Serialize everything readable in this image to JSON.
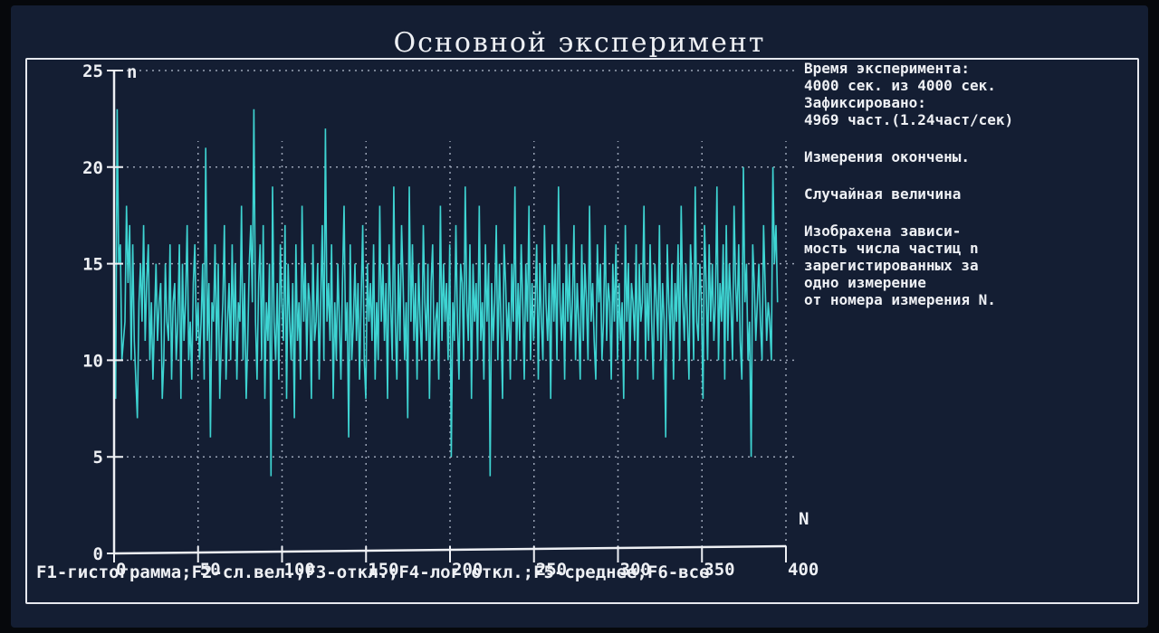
{
  "window": {
    "title": "Основной эксперимент"
  },
  "info": {
    "time_label": "Время эксперимента:",
    "time_value": "4000 сек. из 4000 сек.",
    "registered_label": "Зафиксировано:",
    "registered_value": "4969 част.(1.24част/сек)",
    "status": "Измерения окончены.",
    "mode": "Случайная величина",
    "description_lines": [
      "Изобрахена зависи-",
      "мость числа частиц n",
      "зарегистированных за",
      "одно измерение",
      "от номера измерения N."
    ]
  },
  "footer": {
    "hotkeys": "F1-гистограмма;F2-сл.вел.;F3-откл.;F4-лог.откл.;F5-среднее;F6-все"
  },
  "colors": {
    "series": "#3ed4d2",
    "background": "#141e33",
    "text": "#eef0f4",
    "grid": "#9aa3b5"
  },
  "chart_data": {
    "type": "line",
    "xlabel": "N",
    "ylabel": "n",
    "xlim": [
      0,
      400
    ],
    "ylim": [
      0,
      25
    ],
    "x_ticks": [
      0,
      50,
      100,
      150,
      200,
      250,
      300,
      350,
      400
    ],
    "y_ticks": [
      0,
      5,
      10,
      15,
      20,
      25
    ],
    "grid": true,
    "series": [
      {
        "values": [
          13,
          8,
          23,
          15,
          16,
          10,
          11,
          12,
          18,
          14,
          17,
          10,
          16,
          11,
          9,
          7,
          13,
          15,
          12,
          17,
          11,
          14,
          16,
          10,
          13,
          9,
          12,
          15,
          11,
          13,
          14,
          8,
          10,
          15,
          12,
          11,
          16,
          9,
          13,
          14,
          10,
          12,
          16,
          8,
          15,
          11,
          13,
          17,
          10,
          12,
          9,
          14,
          16,
          11,
          13,
          10,
          12,
          15,
          9,
          21,
          11,
          14,
          6,
          13,
          12,
          16,
          10,
          15,
          8,
          11,
          13,
          17,
          9,
          12,
          14,
          10,
          16,
          11,
          15,
          9,
          13,
          12,
          18,
          10,
          14,
          8,
          11,
          15,
          17,
          13,
          23,
          12,
          9,
          14,
          16,
          10,
          17,
          8,
          13,
          11,
          15,
          4,
          19,
          12,
          10,
          14,
          9,
          16,
          13,
          11,
          17,
          8,
          15,
          12,
          10,
          14,
          7,
          16,
          11,
          13,
          9,
          18,
          12,
          15,
          10,
          14,
          13,
          8,
          16,
          11,
          12,
          15,
          9,
          13,
          17,
          10,
          22,
          12,
          14,
          11,
          16,
          8,
          13,
          10,
          15,
          12,
          9,
          14,
          18,
          11,
          13,
          6,
          16,
          10,
          12,
          15,
          11,
          14,
          9,
          13,
          17,
          10,
          8,
          15,
          12,
          14,
          11,
          16,
          9,
          13,
          10,
          18,
          12,
          15,
          11,
          14,
          8,
          16,
          13,
          10,
          19,
          12,
          9,
          15,
          11,
          17,
          14,
          10,
          13,
          7,
          19,
          12,
          16,
          11,
          14,
          9,
          15,
          12,
          10,
          17,
          13,
          11,
          15,
          8,
          14,
          16,
          10,
          12,
          13,
          9,
          18,
          11,
          15,
          12,
          14,
          10,
          16,
          5,
          13,
          11,
          17,
          12,
          9,
          15,
          14,
          10,
          19,
          13,
          11,
          16,
          8,
          15,
          12,
          14,
          10,
          18,
          11,
          13,
          9,
          16,
          12,
          15,
          4,
          14,
          11,
          13,
          17,
          10,
          15,
          12,
          8,
          16,
          14,
          11,
          13,
          9,
          15,
          12,
          19,
          10,
          14,
          11,
          16,
          13,
          9,
          15,
          12,
          18,
          10,
          14,
          11,
          13,
          16,
          9,
          15,
          12,
          10,
          17,
          13,
          11,
          14,
          8,
          16,
          12,
          15,
          10,
          19,
          13,
          11,
          14,
          9,
          16,
          12,
          15,
          11,
          13,
          17,
          10,
          14,
          12,
          9,
          16,
          11,
          15,
          13,
          10,
          18,
          12,
          14,
          11,
          9,
          16,
          13,
          15,
          10,
          12,
          17,
          11,
          14,
          13,
          9,
          15,
          12,
          16,
          10,
          14,
          11,
          13,
          8,
          17,
          12,
          15,
          10,
          14,
          13,
          11,
          16,
          9,
          15,
          12,
          13,
          18,
          10,
          14,
          11,
          16,
          12,
          9,
          15,
          13,
          11,
          17,
          10,
          14,
          12,
          6,
          16,
          13,
          11,
          15,
          9,
          14,
          12,
          16,
          10,
          18,
          13,
          11,
          15,
          12,
          9,
          16,
          14,
          10,
          19,
          12,
          11,
          15,
          13,
          8,
          17,
          14,
          10,
          16,
          12,
          15,
          11,
          13,
          19,
          10,
          14,
          12,
          16,
          9,
          17,
          11,
          15,
          13,
          10,
          18,
          14,
          12,
          16,
          11,
          9,
          20,
          13,
          15,
          10,
          12,
          5,
          16,
          14,
          11,
          13,
          15,
          12,
          10,
          17,
          14,
          11,
          13,
          12,
          10,
          20,
          15,
          17,
          13
        ]
      }
    ]
  }
}
